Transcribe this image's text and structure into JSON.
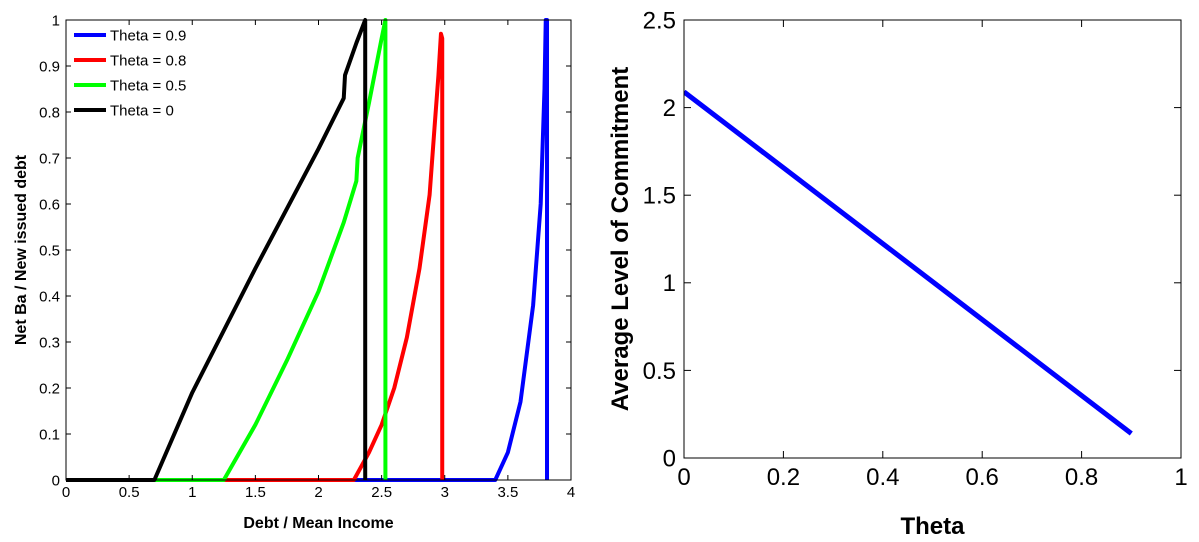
{
  "chart_data": [
    {
      "type": "line",
      "xlabel": "Debt / Mean Income",
      "ylabel": "Net Ba / New issued debt",
      "xlim": [
        0,
        4
      ],
      "ylim": [
        0,
        1
      ],
      "xticks": [
        "0",
        "0.5",
        "1",
        "1.5",
        "2",
        "2.5",
        "3",
        "3.5",
        "4"
      ],
      "yticks": [
        "0",
        "0.1",
        "0.2",
        "0.3",
        "0.4",
        "0.5",
        "0.6",
        "0.7",
        "0.8",
        "0.9",
        "1"
      ],
      "grid": false,
      "legend_position": "top-left",
      "series": [
        {
          "name": "Theta = 0.9",
          "color": "#0000ff",
          "points": [
            [
              0,
              0
            ],
            [
              3.4,
              0
            ],
            [
              3.5,
              0.06
            ],
            [
              3.6,
              0.17
            ],
            [
              3.7,
              0.38
            ],
            [
              3.76,
              0.6
            ],
            [
              3.79,
              0.85
            ],
            [
              3.8,
              1.0
            ],
            [
              3.81,
              1.0
            ],
            [
              3.81,
              0
            ]
          ]
        },
        {
          "name": "Theta = 0.8",
          "color": "#ff0000",
          "points": [
            [
              0,
              0
            ],
            [
              2.28,
              0
            ],
            [
              2.4,
              0.06
            ],
            [
              2.5,
              0.12
            ],
            [
              2.6,
              0.2
            ],
            [
              2.7,
              0.31
            ],
            [
              2.8,
              0.46
            ],
            [
              2.88,
              0.62
            ],
            [
              2.92,
              0.77
            ],
            [
              2.95,
              0.88
            ],
            [
              2.97,
              0.97
            ],
            [
              2.98,
              0.96
            ],
            [
              2.98,
              0
            ]
          ]
        },
        {
          "name": "Theta = 0.5",
          "color": "#00ff00",
          "points": [
            [
              0.7,
              0
            ],
            [
              1.25,
              0
            ],
            [
              1.5,
              0.12
            ],
            [
              1.75,
              0.26
            ],
            [
              2.0,
              0.41
            ],
            [
              2.2,
              0.56
            ],
            [
              2.3,
              0.65
            ],
            [
              2.31,
              0.7
            ],
            [
              2.4,
              0.82
            ],
            [
              2.5,
              0.96
            ],
            [
              2.53,
              1.0
            ],
            [
              2.53,
              0
            ]
          ]
        },
        {
          "name": "Theta = 0",
          "color": "#000000",
          "points": [
            [
              0,
              0
            ],
            [
              0.7,
              0
            ],
            [
              1.0,
              0.19
            ],
            [
              1.5,
              0.46
            ],
            [
              2.0,
              0.72
            ],
            [
              2.2,
              0.83
            ],
            [
              2.21,
              0.88
            ],
            [
              2.3,
              0.95
            ],
            [
              2.37,
              1.0
            ],
            [
              2.37,
              0
            ]
          ]
        }
      ]
    },
    {
      "type": "line",
      "xlabel": "Theta",
      "ylabel": "Average Level of Commitment",
      "xlim": [
        0,
        1
      ],
      "ylim": [
        0,
        2.5
      ],
      "xticks": [
        "0",
        "0.2",
        "0.4",
        "0.6",
        "0.8",
        "1"
      ],
      "yticks": [
        "0",
        "0.5",
        "1",
        "1.5",
        "2",
        "2.5"
      ],
      "grid": false,
      "series": [
        {
          "color": "#0000ff",
          "points": [
            [
              0,
              2.09
            ],
            [
              0.9,
              0.14
            ]
          ]
        }
      ]
    }
  ]
}
